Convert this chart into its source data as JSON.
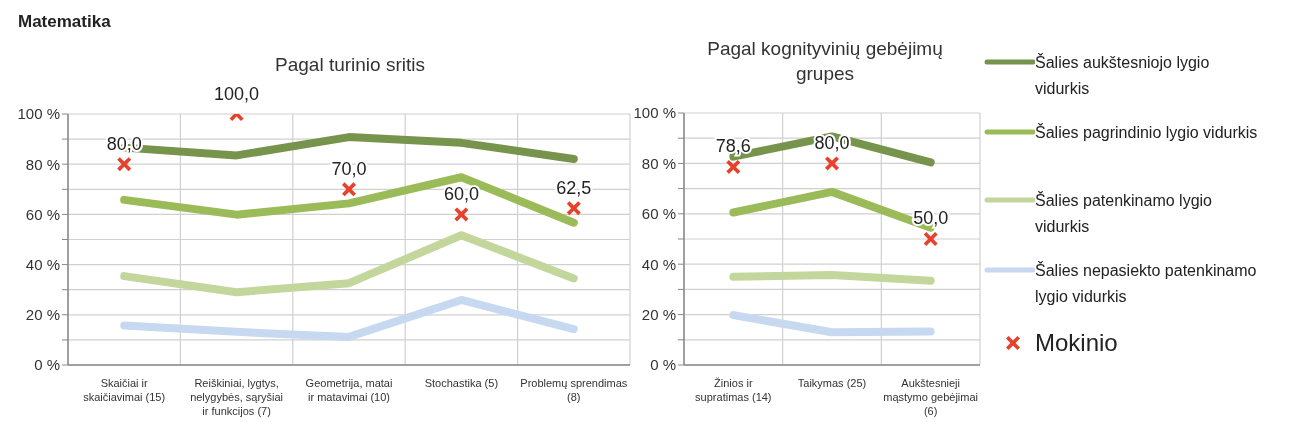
{
  "chart_data": [
    {
      "type": "line",
      "title": "Pagal turinio sritis",
      "annotations": [
        "Matematika"
      ],
      "categories": [
        "Skaičiai ir skaičiavimai (15)",
        "Reiškiniai, lygtys, nelygybės, sąryšiai ir funkcijos (7)",
        "Geometrija, matai ir matavimai (10)",
        "Stochastika (5)",
        "Problemų sprendimas (8)"
      ],
      "series": [
        {
          "color": "#77944c",
          "values": [
            86.6,
            83.5,
            90.8,
            88.5,
            82.1
          ]
        },
        {
          "color": "#9bbb59",
          "values": [
            65.8,
            59.9,
            64.4,
            74.8,
            56.7
          ]
        },
        {
          "color": "#c3d69b",
          "values": [
            35.4,
            29.0,
            32.6,
            51.7,
            34.5
          ]
        },
        {
          "color": "#c6d9f0",
          "values": [
            15.7,
            13.2,
            11.2,
            25.9,
            14.3
          ]
        },
        {
          "type": "scatter",
          "color": "#e8412b",
          "marker": "cross",
          "values": [
            80,
            100,
            70,
            60,
            62.5
          ],
          "value_labels": [
            "80,0",
            "100,0",
            "70,0",
            "60,0",
            "62,5"
          ]
        }
      ],
      "ylim": [
        0,
        100
      ],
      "yticks": [
        {
          "value": 0,
          "label": "0 %"
        },
        {
          "value": 10,
          "label": null
        },
        {
          "value": 20,
          "label": "20 %"
        },
        {
          "value": 30,
          "label": null
        },
        {
          "value": 40,
          "label": "40 %"
        },
        {
          "value": 50,
          "label": null
        },
        {
          "value": 60,
          "label": "60 %"
        },
        {
          "value": 70,
          "label": null
        },
        {
          "value": 80,
          "label": "80 %"
        },
        {
          "value": 90,
          "label": null
        },
        {
          "value": 100,
          "label": "100 %"
        }
      ],
      "grid": true,
      "legend": false
    },
    {
      "type": "line",
      "title": "Pagal kognityvinių gebėjimų grupes",
      "categories": [
        "Žinios ir supratimas (14)",
        "Taikymas (25)",
        "Aukštesnieji mąstymo gebėjimai (6)"
      ],
      "series": [
        {
          "name": "Šalies aukštesniojo lygio vidurkis",
          "color": "#77944c",
          "values": [
            82.7,
            90.7,
            80.4
          ]
        },
        {
          "name": "Šalies pagrindinio lygio vidurkis",
          "color": "#9bbb59",
          "values": [
            60.5,
            68.7,
            54.5
          ]
        },
        {
          "name": "Šalies patenkinamo lygio vidurkis",
          "color": "#c3d69b",
          "values": [
            35.0,
            35.7,
            33.4
          ]
        },
        {
          "name": "Šalies nepasiekto patenkinamo lygio vidurkis",
          "color": "#c6d9f0",
          "values": [
            19.8,
            13.0,
            13.3
          ]
        },
        {
          "name": "Mokinio",
          "type": "scatter",
          "color": "#e8412b",
          "marker": "cross",
          "values": [
            78.6,
            80,
            50
          ],
          "value_labels": [
            "78,6",
            "80,0",
            "50,0"
          ]
        }
      ],
      "ylim": [
        0,
        100
      ],
      "yticks": [
        {
          "value": 0,
          "label": "0 %"
        },
        {
          "value": 10,
          "label": null
        },
        {
          "value": 20,
          "label": "20 %"
        },
        {
          "value": 30,
          "label": null
        },
        {
          "value": 40,
          "label": "40 %"
        },
        {
          "value": 50,
          "label": null
        },
        {
          "value": 60,
          "label": "60 %"
        },
        {
          "value": 70,
          "label": null
        },
        {
          "value": 80,
          "label": "80 %"
        },
        {
          "value": 90,
          "label": null
        },
        {
          "value": 100,
          "label": "100 %"
        }
      ],
      "grid": true,
      "legend": "right"
    }
  ]
}
